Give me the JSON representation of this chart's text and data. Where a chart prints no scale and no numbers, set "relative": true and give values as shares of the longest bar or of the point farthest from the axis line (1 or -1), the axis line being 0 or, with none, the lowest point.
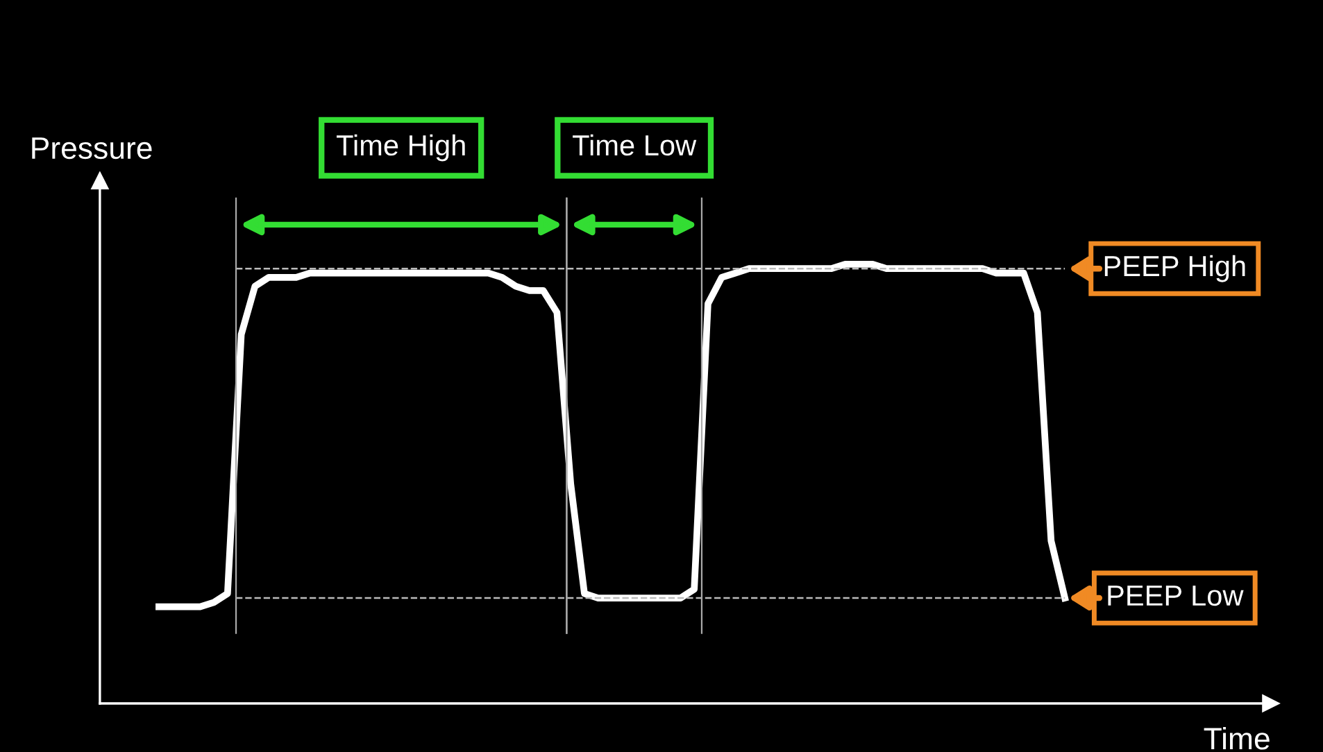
{
  "chart_data": {
    "type": "line",
    "relative": true,
    "xlabel": "Time",
    "ylabel": "Pressure",
    "categories": [
      null,
      null,
      null,
      null,
      null,
      null,
      null,
      null,
      null,
      null,
      null,
      null,
      null,
      null,
      null,
      null,
      null,
      null,
      null,
      null,
      null,
      null,
      null,
      null,
      null,
      null,
      null,
      null,
      null,
      null,
      null,
      null,
      null,
      null,
      null,
      null,
      null,
      null,
      null,
      null,
      null,
      null,
      null,
      null,
      null,
      null,
      null,
      null,
      null,
      null,
      null,
      null,
      null,
      null,
      null,
      null,
      null,
      null,
      null,
      null,
      null,
      null,
      null,
      null,
      null,
      null,
      null
    ],
    "series": [
      {
        "color": "#ffffff",
        "values": [
          0.22,
          0.22,
          0.22,
          0.22,
          0.23,
          0.25,
          0.84,
          0.95,
          0.97,
          0.97,
          0.97,
          0.98,
          0.98,
          0.98,
          0.98,
          0.98,
          0.98,
          0.98,
          0.98,
          0.98,
          0.98,
          0.98,
          0.98,
          0.98,
          0.98,
          0.97,
          0.95,
          0.94,
          0.94,
          0.89,
          0.5,
          0.25,
          0.24,
          0.24,
          0.24,
          0.24,
          0.24,
          0.24,
          0.24,
          0.26,
          0.91,
          0.97,
          0.98,
          0.99,
          0.99,
          0.99,
          0.99,
          0.99,
          0.99,
          0.99,
          1,
          1,
          1,
          0.99,
          0.99,
          0.99,
          0.99,
          0.99,
          0.99,
          0.99,
          0.99,
          0.98,
          0.98,
          0.98,
          0.89,
          0.37,
          0.24
        ]
      }
    ],
    "ref_lines": [
      {
        "axis": "y",
        "value": 0.99,
        "label": "PEEP High",
        "color": "#bbbbbb",
        "line_style": "dashed"
      },
      {
        "axis": "y",
        "value": 0.24,
        "label": "PEEP Low",
        "color": "#bbbbbb",
        "line_style": "dashed"
      }
    ],
    "annotations": [
      "Time High",
      "Time Low"
    ],
    "grid": false,
    "legend": false,
    "marker": "none",
    "line_style": "solid"
  }
}
